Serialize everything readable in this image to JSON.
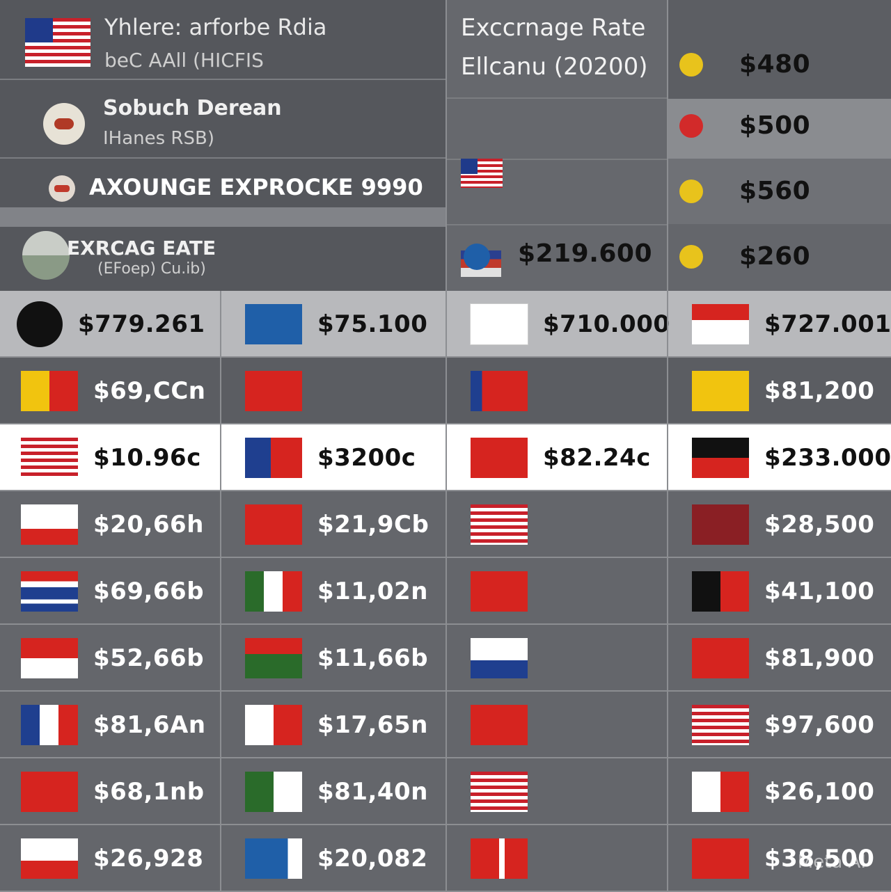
{
  "header": {
    "title_line1": "Yhlere: arforbe Rdia",
    "title_line2": "beC AAll (HICFIS",
    "item2_title": "Sobuch Derean",
    "item2_sub": "IHanes RSB)",
    "item3_title": "AXOUNGE EXPROCKE 9990",
    "item4_title": "EXRCAG EATE",
    "item4_sub": "(EFoep) Cu.ib)",
    "col_title_line1": "Exccrnage  Rate",
    "col_title_line2": "Ellcanu (20200)"
  },
  "right_column": [
    {
      "value": "$480",
      "coin": "#e8c31c"
    },
    {
      "value": "$500",
      "coin": "#d22a2a"
    },
    {
      "value": "$560",
      "coin": "#e8c31c"
    },
    {
      "value": "$260",
      "coin": "#e8c31c"
    }
  ],
  "mid_value": "$219.600",
  "rows": [
    {
      "style": "light",
      "cells": [
        "$779.261",
        "$75.100",
        "$710.000",
        "$727.001"
      ]
    },
    {
      "style": "dark",
      "cells": [
        "$69,CCn",
        "",
        "",
        "$81,200"
      ]
    },
    {
      "style": "white",
      "cells": [
        "$10.96c",
        "$3200c",
        "$82.24c",
        "$233.000"
      ]
    },
    {
      "style": "mid",
      "cells": [
        "$20,66h",
        "$21,9Cb",
        "",
        "$28,500"
      ]
    },
    {
      "style": "mid",
      "cells": [
        "$69,66b",
        "$11,02n",
        "",
        "$41,100"
      ]
    },
    {
      "style": "mid",
      "cells": [
        "$52,66b",
        "$11,66b",
        "",
        "$81,900"
      ]
    },
    {
      "style": "mid",
      "cells": [
        "$81,6An",
        "$17,65n",
        "",
        "$97,600"
      ]
    },
    {
      "style": "mid",
      "cells": [
        "$68,1nb",
        "$81,40n",
        "",
        "$26,100"
      ]
    },
    {
      "style": "mid",
      "cells": [
        "$26,928",
        "$20,082",
        "",
        "$38,500"
      ]
    }
  ],
  "watermark": "Meta AI",
  "colors": {
    "red": "#d6241f",
    "yellow": "#f1c40f",
    "blue": "#1f3f8f",
    "green": "#2a6b2a",
    "white": "#ffffff"
  }
}
